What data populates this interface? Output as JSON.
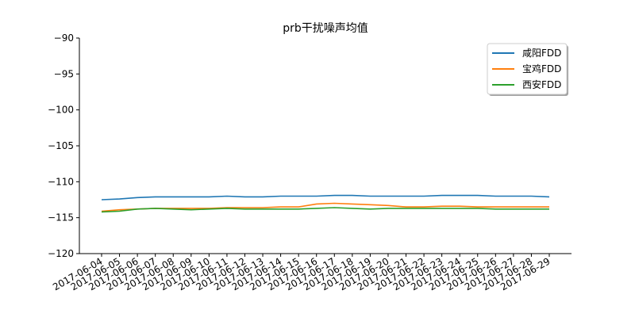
{
  "chart_data": {
    "type": "line",
    "title": "prb干扰噪声均值",
    "xlabel": "",
    "ylabel": "",
    "ylim": [
      -120,
      -90
    ],
    "yticks": [
      -90,
      -95,
      -100,
      -105,
      -110,
      -115,
      -120
    ],
    "ytick_labels": [
      "−90",
      "−95",
      "−100",
      "−105",
      "−110",
      "−115",
      "−120"
    ],
    "grid": false,
    "legend_position": "top-right",
    "categories": [
      "2017-06-04",
      "2017-06-05",
      "2017-06-06",
      "2017-06-07",
      "2017-06-08",
      "2017-06-09",
      "2017-06-10",
      "2017-06-11",
      "2017-06-12",
      "2017-06-13",
      "2017-06-14",
      "2017-06-15",
      "2017-06-16",
      "2017-06-17",
      "2017-06-18",
      "2017-06-19",
      "2017-06-20",
      "2017-06-21",
      "2017-06-22",
      "2017-06-23",
      "2017-06-24",
      "2017-06-25",
      "2017-06-26",
      "2017-06-27",
      "2017-06-28",
      "2017-06-29"
    ],
    "series": [
      {
        "name": "咸阳FDD",
        "color": "#1f77b4",
        "values": [
          -112.5,
          -112.4,
          -112.2,
          -112.1,
          -112.1,
          -112.1,
          -112.1,
          -112.0,
          -112.1,
          -112.1,
          -112.0,
          -112.0,
          -112.0,
          -111.9,
          -111.9,
          -112.0,
          -112.0,
          -112.0,
          -112.0,
          -111.9,
          -111.9,
          -111.9,
          -112.0,
          -112.0,
          -112.0,
          -112.1
        ]
      },
      {
        "name": "宝鸡FDD",
        "color": "#ff7f0e",
        "values": [
          -114.1,
          -113.9,
          -113.8,
          -113.7,
          -113.7,
          -113.7,
          -113.7,
          -113.6,
          -113.6,
          -113.6,
          -113.5,
          -113.5,
          -113.1,
          -113.0,
          -113.1,
          -113.2,
          -113.3,
          -113.5,
          -113.5,
          -113.4,
          -113.4,
          -113.5,
          -113.5,
          -113.5,
          -113.5,
          -113.5
        ]
      },
      {
        "name": "西安FDD",
        "color": "#2ca02c",
        "values": [
          -114.2,
          -114.1,
          -113.8,
          -113.7,
          -113.8,
          -113.9,
          -113.8,
          -113.7,
          -113.8,
          -113.8,
          -113.8,
          -113.8,
          -113.7,
          -113.6,
          -113.7,
          -113.8,
          -113.7,
          -113.7,
          -113.7,
          -113.7,
          -113.7,
          -113.7,
          -113.8,
          -113.8,
          -113.8,
          -113.8
        ]
      }
    ]
  }
}
